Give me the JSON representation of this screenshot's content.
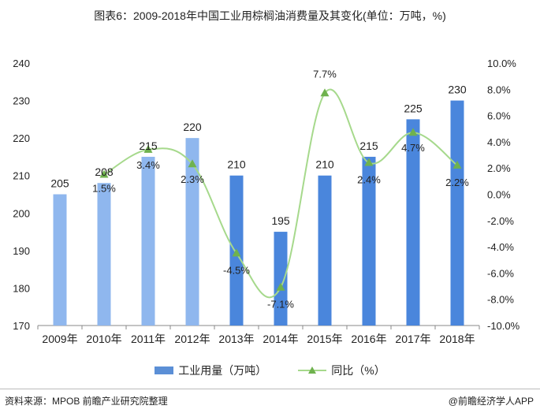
{
  "title": "图表6：2009-2018年中国工业用棕榈油消费量及其变化(单位：万吨，%)",
  "chart_data": {
    "type": "bar",
    "categories": [
      "2009年",
      "2010年",
      "2011年",
      "2012年",
      "2013年",
      "2014年",
      "2015年",
      "2016年",
      "2017年",
      "2018年"
    ],
    "series": [
      {
        "name": "工业用量（万吨）",
        "type": "bar",
        "axis": "left",
        "values": [
          205,
          208,
          215,
          220,
          210,
          195,
          210,
          215,
          225,
          230
        ],
        "labels": [
          "205",
          "208",
          "215",
          "220",
          "210",
          "195",
          "210",
          "215",
          "225",
          "230"
        ]
      },
      {
        "name": "同比（%）",
        "type": "line",
        "axis": "right",
        "values": [
          null,
          1.5,
          3.4,
          2.3,
          -4.5,
          -7.1,
          7.7,
          2.4,
          4.7,
          2.2
        ],
        "labels": [
          "",
          "1.5%",
          "3.4%",
          "2.3%",
          "-4.5%",
          "-7.1%",
          "7.7%",
          "2.4%",
          "4.7%",
          "2.2%"
        ]
      }
    ],
    "y_left": {
      "min": 170,
      "max": 240,
      "step": 10,
      "ticks": [
        "170",
        "180",
        "190",
        "200",
        "210",
        "220",
        "230",
        "240"
      ]
    },
    "y_right": {
      "min": -10,
      "max": 10,
      "step": 2,
      "ticks": [
        "-10.0%",
        "-8.0%",
        "-6.0%",
        "-4.0%",
        "-2.0%",
        "0.0%",
        "2.0%",
        "4.0%",
        "6.0%",
        "8.0%",
        "10.0%"
      ]
    },
    "legend_position": "bottom",
    "colors": {
      "bar_light": "#8fb7ee",
      "bar_dark": "#4a86dc",
      "line": "#a6d98c",
      "marker": "#6fb24e",
      "axis": "#888888"
    }
  },
  "legend": {
    "bar_label": "工业用量（万吨）",
    "line_label": "同比（%）"
  },
  "footer": {
    "source": "资料来源：MPOB 前瞻产业研究院整理",
    "brand": "@前瞻经济学人APP"
  }
}
